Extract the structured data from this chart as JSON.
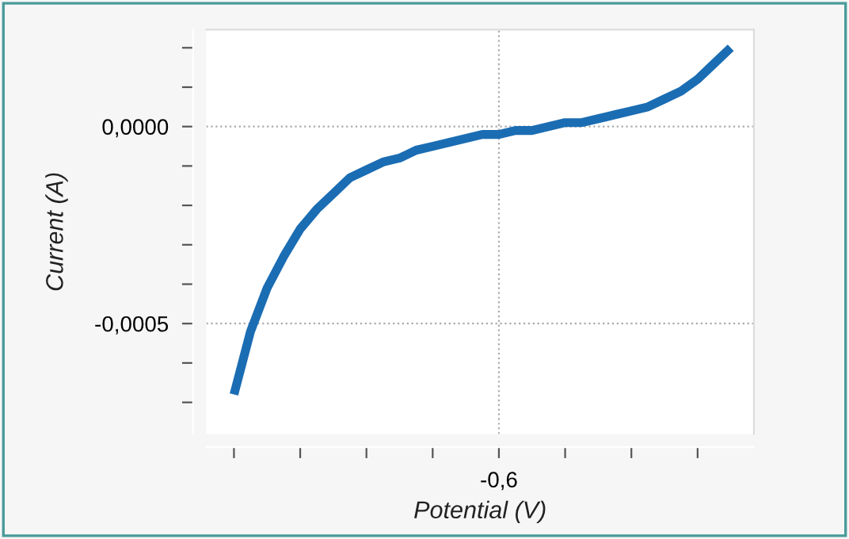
{
  "chart_data": {
    "type": "line",
    "xlabel": "Potential (V)",
    "ylabel": "Current (A)",
    "categories": [
      null,
      null,
      null,
      null,
      null,
      null,
      null,
      null,
      null,
      null,
      null,
      null,
      null,
      null,
      null,
      null,
      "-0,6",
      null,
      null,
      null,
      null,
      null,
      null,
      null,
      null,
      null,
      null,
      null,
      null,
      null,
      null
    ],
    "series": [
      {
        "color": "#1b6db3",
        "values": [
          -0.00068,
          -0.00052,
          -0.00041,
          -0.00033,
          -0.00026,
          -0.00021,
          -0.00017,
          -0.00013,
          -0.00011,
          -9e-05,
          -8e-05,
          -6e-05,
          -5e-05,
          -4e-05,
          -3e-05,
          -2e-05,
          -2e-05,
          -1e-05,
          -1e-05,
          0.0,
          1e-05,
          1e-05,
          2e-05,
          3e-05,
          4e-05,
          5e-05,
          7e-05,
          9e-05,
          0.00012,
          0.00016,
          0.0002
        ]
      }
    ],
    "ylim": [
      -0.00078,
      0.000246
    ],
    "yticks": [
      {
        "value": -0.0007,
        "label": null
      },
      {
        "value": -0.0006,
        "label": null
      },
      {
        "value": -0.0005,
        "label": "-0,0005"
      },
      {
        "value": -0.0004,
        "label": null
      },
      {
        "value": -0.0003,
        "label": null
      },
      {
        "value": -0.0002,
        "label": null
      },
      {
        "value": -0.0001,
        "label": null
      },
      {
        "value": 0.0,
        "label": "0,0000"
      },
      {
        "value": 0.0001,
        "label": null
      },
      {
        "value": 0.0002,
        "label": null
      }
    ],
    "grid": true,
    "marker": "none",
    "line_style": "solid"
  }
}
